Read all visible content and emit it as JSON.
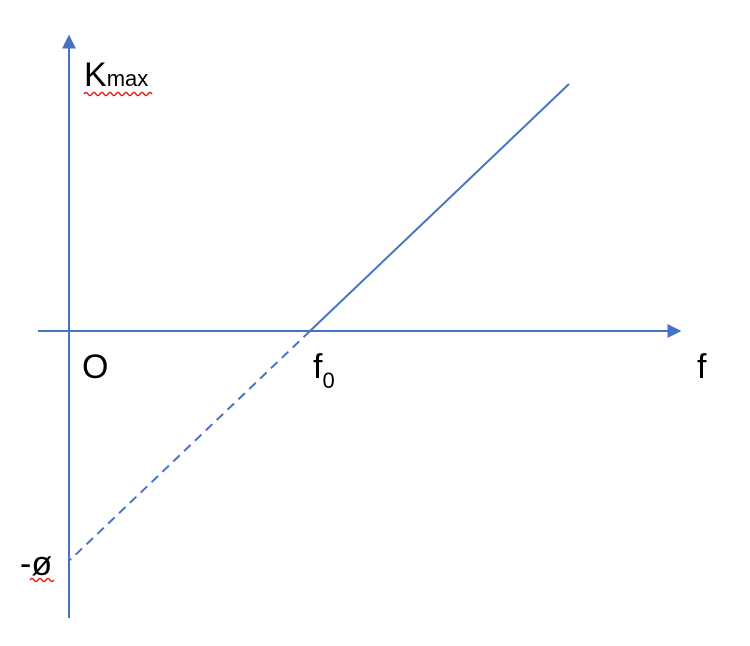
{
  "axes": {
    "y_label_main": "K",
    "y_label_sub": "max",
    "origin_label": "O",
    "x_label": "f",
    "x_intercept_main": "f",
    "x_intercept_sub": "0",
    "y_intercept_label": "-ø"
  },
  "colors": {
    "line": "#4472C4",
    "spellcheck": "#E02020",
    "text": "#000000"
  }
}
